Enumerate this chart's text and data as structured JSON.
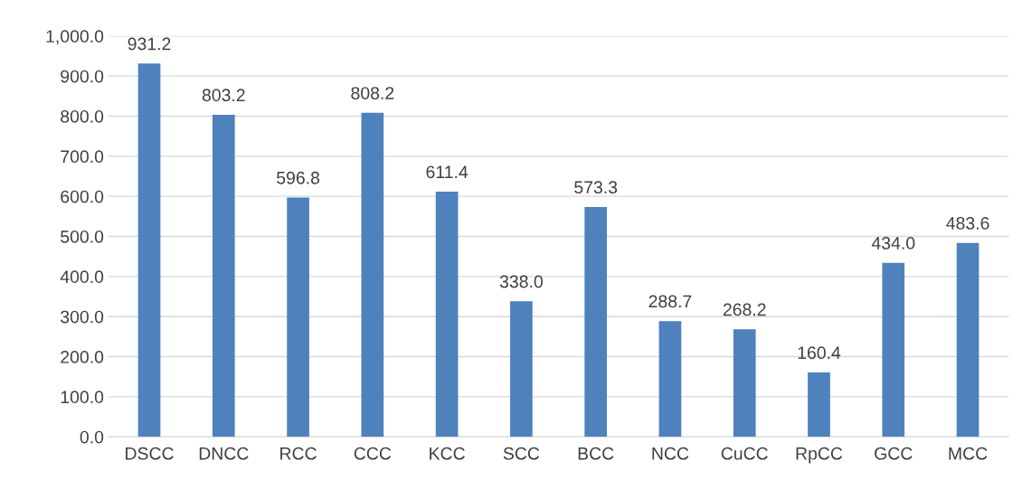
{
  "chart_data": {
    "type": "bar",
    "categories": [
      "DSCC",
      "DNCC",
      "RCC",
      "CCC",
      "KCC",
      "SCC",
      "BCC",
      "NCC",
      "CuCC",
      "RpCC",
      "GCC",
      "MCC"
    ],
    "values": [
      931.2,
      803.2,
      596.8,
      808.2,
      611.4,
      338.0,
      573.3,
      288.7,
      268.2,
      160.4,
      434.0,
      483.6
    ],
    "value_labels": [
      "931.2",
      "803.2",
      "596.8",
      "808.2",
      "611.4",
      "338.0",
      "573.3",
      "288.7",
      "268.2",
      "160.4",
      "434.0",
      "483.6"
    ],
    "color": "#4f81bd",
    "ylim": [
      0,
      1000
    ],
    "yticks": [
      {
        "value": 0,
        "label": "0.0"
      },
      {
        "value": 100,
        "label": "100.0"
      },
      {
        "value": 200,
        "label": "200.0"
      },
      {
        "value": 300,
        "label": "300.0"
      },
      {
        "value": 400,
        "label": "400.0"
      },
      {
        "value": 500,
        "label": "500.0"
      },
      {
        "value": 600,
        "label": "600.0"
      },
      {
        "value": 700,
        "label": "700.0"
      },
      {
        "value": 800,
        "label": "800.0"
      },
      {
        "value": 900,
        "label": "900.0"
      },
      {
        "value": 1000,
        "label": "1,000.0"
      }
    ],
    "grid": "y"
  }
}
